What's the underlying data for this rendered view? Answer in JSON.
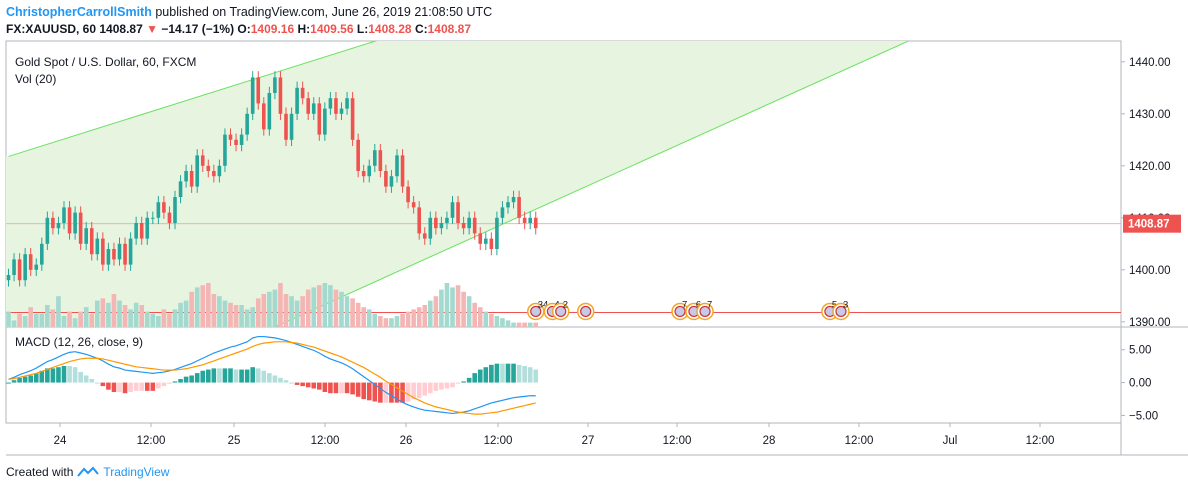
{
  "header": {
    "author": "ChristopherCarrollSmith",
    "published": "published on TradingView.com, June 26, 2019 21:08:50 UTC",
    "symbol": "FX:XAUUSD, 60",
    "last": "1408.87",
    "change": "−14.17 (−1%)",
    "o_label": "O:",
    "o_value": "1409.16",
    "h_label": "H:",
    "h_value": "1409.56",
    "l_label": "L:",
    "l_value": "1408.28",
    "c_label": "C:",
    "c_value": "1408.87"
  },
  "colors": {
    "up": "#26a69a",
    "down": "#ef5350",
    "channel_line": "#69e25f",
    "channel_fill": "#e6f4e0",
    "macd_line": "#2196f3",
    "signal_line": "#ff9800",
    "price_label_bg": "#ef5350",
    "brand": "#2196f3"
  },
  "chart_data": {
    "type": "candlestick",
    "title": "Gold Spot / U.S. Dollar, 60, FXCM",
    "volume_label": "Vol (20)",
    "macd_label": "MACD (12, 26, close, 9)",
    "y_ticks": [
      "1440.00",
      "1430.00",
      "1420.00",
      "1410.00",
      "1400.00",
      "1390.00"
    ],
    "y_range": [
      1389,
      1444
    ],
    "last_price_label": "1408.87",
    "support_level": 1391.8,
    "macd_ticks": [
      "5.00",
      "0.00",
      "−5.00"
    ],
    "macd_range": [
      -6,
      8
    ],
    "x_ticks": [
      "24",
      "12:00",
      "25",
      "12:00",
      "26",
      "12:00",
      "27",
      "12:00",
      "28",
      "12:00",
      "Jul",
      "12:00"
    ],
    "channel": {
      "upper": [
        {
          "bar": 0,
          "price": 1421.8
        },
        {
          "bar": 84,
          "price": 1450
        }
      ],
      "lower": [
        {
          "bar": 48,
          "price": 1389
        },
        {
          "bar": 158,
          "price": 1442
        }
      ]
    },
    "events": [
      {
        "bar": 95,
        "label": "34"
      },
      {
        "bar": 98,
        "label": "4"
      },
      {
        "bar": 99.5,
        "label": "2"
      },
      {
        "bar": 104,
        "label": ""
      },
      {
        "bar": 121,
        "label": "7"
      },
      {
        "bar": 123.5,
        "label": "6"
      },
      {
        "bar": 125.5,
        "label": "7"
      },
      {
        "bar": 148,
        "label": "5"
      },
      {
        "bar": 150,
        "label": "3"
      }
    ],
    "closes": [
      1399,
      1402,
      1398,
      1403,
      1400,
      1401,
      1405,
      1410,
      1408,
      1409,
      1412,
      1407,
      1411,
      1405,
      1408,
      1403,
      1406,
      1401,
      1404,
      1402,
      1405,
      1401,
      1406,
      1409,
      1406,
      1410,
      1410,
      1413,
      1411,
      1409,
      1414,
      1417,
      1419,
      1416,
      1422,
      1420,
      1419,
      1418,
      1420,
      1426,
      1425,
      1424,
      1426,
      1430,
      1437,
      1432,
      1427,
      1434,
      1437,
      1430,
      1425,
      1430,
      1435,
      1433,
      1430,
      1432,
      1426,
      1431,
      1433,
      1430,
      1431,
      1433,
      1425,
      1419,
      1418,
      1420,
      1423,
      1419,
      1416,
      1418,
      1422,
      1416,
      1413,
      1412,
      1407,
      1406,
      1410,
      1408,
      1409,
      1410,
      1413,
      1409,
      1408,
      1410,
      1407,
      1405,
      1406,
      1404,
      1410,
      1412,
      1413,
      1414,
      1410,
      1409,
      1410,
      1408
    ],
    "volumes": [
      0.35,
      0.15,
      0.3,
      0.25,
      0.45,
      0.3,
      0.3,
      0.5,
      0.4,
      0.7,
      0.25,
      0.35,
      0.2,
      0.35,
      0.45,
      0.3,
      0.6,
      0.65,
      0.55,
      0.75,
      0.6,
      0.5,
      0.4,
      0.55,
      0.5,
      0.35,
      0.3,
      0.25,
      0.4,
      0.3,
      0.4,
      0.55,
      0.6,
      0.8,
      0.9,
      0.95,
      1.0,
      0.75,
      0.7,
      0.6,
      0.55,
      0.5,
      0.5,
      0.4,
      0.45,
      0.65,
      0.75,
      0.8,
      0.85,
      1.0,
      0.75,
      0.7,
      0.6,
      0.7,
      0.85,
      0.9,
      0.95,
      1.0,
      0.95,
      0.85,
      0.8,
      0.7,
      0.65,
      0.55,
      0.45,
      0.4,
      0.3,
      0.25,
      0.2,
      0.2,
      0.25,
      0.3,
      0.35,
      0.4,
      0.45,
      0.5,
      0.6,
      0.7,
      0.85,
      1.0,
      0.9,
      0.95,
      0.8,
      0.7,
      0.55,
      0.45,
      0.35,
      0.3,
      0.25,
      0.2,
      0.15,
      0.1,
      0.1,
      0.1,
      0.1,
      0.1
    ],
    "macd": [
      0.5,
      0.8,
      1.2,
      1.5,
      1.8,
      2.2,
      2.7,
      3.2,
      3.5,
      3.9,
      4.3,
      4.6,
      4.7,
      4.5,
      4.3,
      4.0,
      3.7,
      3.3,
      2.8,
      2.4,
      2.2,
      1.9,
      1.8,
      1.7,
      1.6,
      1.5,
      1.4,
      1.5,
      1.6,
      1.8,
      2.0,
      2.3,
      2.6,
      2.9,
      3.3,
      3.7,
      4.1,
      4.5,
      4.8,
      5.1,
      5.4,
      5.6,
      5.9,
      6.2,
      6.8,
      7.0,
      7.0,
      6.9,
      6.8,
      6.6,
      6.4,
      6.1,
      5.8,
      5.5,
      5.2,
      4.9,
      4.5,
      4.0,
      3.6,
      3.3,
      3.0,
      2.6,
      2.1,
      1.5,
      0.9,
      0.3,
      -0.3,
      -0.9,
      -1.5,
      -2.0,
      -2.5,
      -3.0,
      -3.4,
      -3.7,
      -4.0,
      -4.2,
      -4.3,
      -4.4,
      -4.5,
      -4.6,
      -4.7,
      -4.6,
      -4.5,
      -4.3,
      -4.0,
      -3.7,
      -3.4,
      -3.1,
      -2.9,
      -2.7,
      -2.5,
      -2.3,
      -2.2,
      -2.1,
      -2.0,
      -2.0
    ],
    "signal": [
      0.5,
      0.6,
      0.8,
      1.0,
      1.2,
      1.4,
      1.7,
      2.0,
      2.3,
      2.6,
      2.9,
      3.2,
      3.4,
      3.6,
      3.7,
      3.7,
      3.7,
      3.6,
      3.4,
      3.2,
      3.0,
      2.8,
      2.6,
      2.4,
      2.3,
      2.2,
      2.1,
      2.0,
      1.9,
      1.9,
      1.9,
      2.0,
      2.1,
      2.3,
      2.5,
      2.7,
      3.0,
      3.3,
      3.6,
      3.9,
      4.2,
      4.5,
      4.8,
      5.1,
      5.5,
      5.8,
      6.0,
      6.1,
      6.2,
      6.2,
      6.2,
      6.1,
      6.0,
      5.8,
      5.6,
      5.4,
      5.1,
      4.8,
      4.5,
      4.2,
      3.9,
      3.5,
      3.1,
      2.7,
      2.3,
      1.8,
      1.3,
      0.8,
      0.2,
      -0.3,
      -0.8,
      -1.3,
      -1.8,
      -2.3,
      -2.7,
      -3.1,
      -3.4,
      -3.7,
      -3.9,
      -4.1,
      -4.3,
      -4.5,
      -4.6,
      -4.7,
      -4.8,
      -4.8,
      -4.7,
      -4.6,
      -4.5,
      -4.3,
      -4.1,
      -3.9,
      -3.7,
      -3.5,
      -3.3,
      -3.1
    ]
  },
  "footer": {
    "created_with": "Created with",
    "brand": "TradingView"
  }
}
